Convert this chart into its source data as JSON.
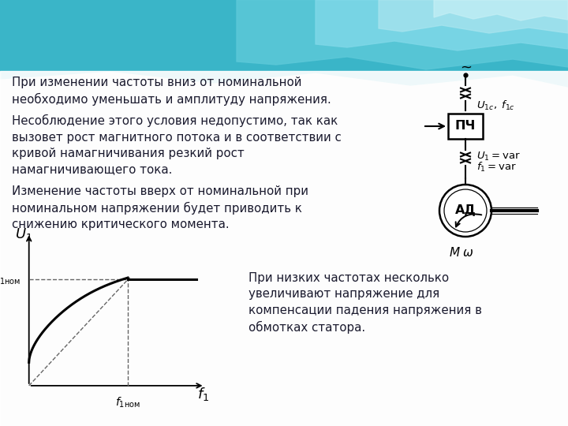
{
  "text1": "При изменении частоты вниз от номинальной\nнеобходимо уменьшать и амплитуду напряжения.",
  "text2": "Несоблюдение этого условия недопустимо, так как\nвызовет рост магнитного потока и в соответствии с\nкривой намагничивания резкий рост\nнамагничивающего тока.",
  "text3": "Изменение частоты вверх от номинальной при\nноминальном напряжении будет приводить к\nснижению критического момента.",
  "text4": "При низких частотах несколько\nувеличивают напряжение для\nкомпенсации падения напряжения в\nобмотках статора.",
  "text_color": "#1a1a2e",
  "bg_white": "#ffffff",
  "bg_gray": "#f0f0f2",
  "wave_color1": "#4ab8cc",
  "wave_color2": "#6ecfdf",
  "wave_color3": "#9adce8",
  "wave_color4": "#c0eaf2"
}
